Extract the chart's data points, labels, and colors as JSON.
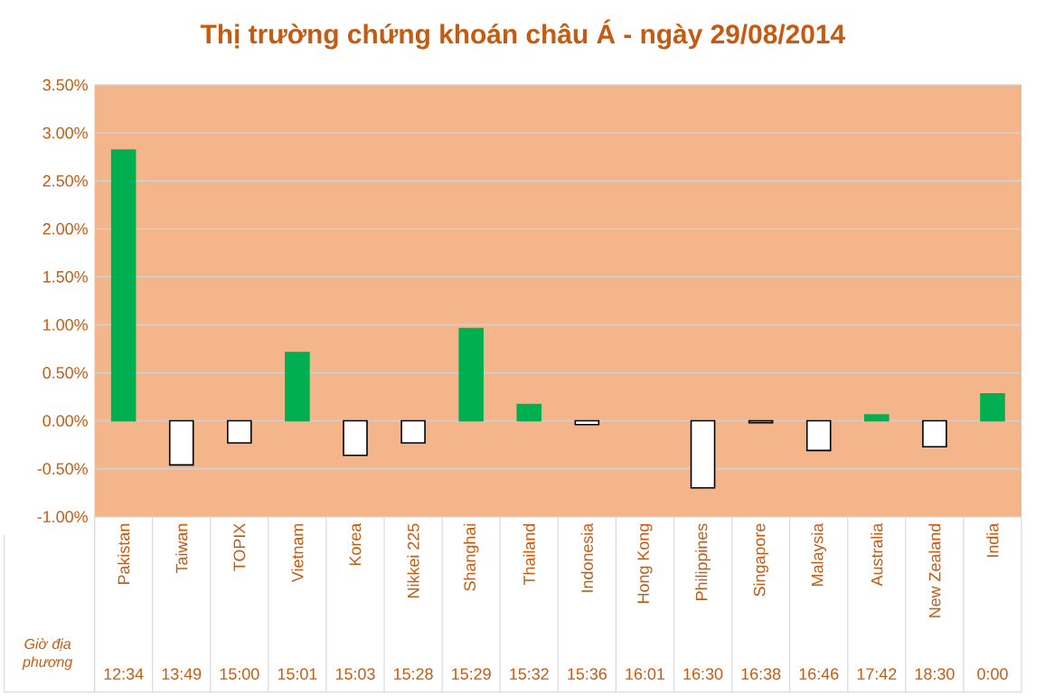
{
  "chart_data": {
    "type": "bar",
    "title": "Thị trường chứng khoán châu Á - ngày 29/08/2014",
    "categories": [
      "Pakistan",
      "Taiwan",
      "TOPIX",
      "Vietnam",
      "Korea",
      "Nikkei 225",
      "Shanghai",
      "Thailand",
      "Indonesia",
      "Hong Kong",
      "Philippines",
      "Singapore",
      "Malaysia",
      "Australia",
      "New Zealand",
      "India"
    ],
    "values": [
      2.82,
      -0.46,
      -0.23,
      0.71,
      -0.36,
      -0.23,
      0.96,
      0.17,
      -0.04,
      0,
      -0.7,
      -0.02,
      -0.31,
      0.06,
      -0.27,
      0.28
    ],
    "colors": [
      "#00b050",
      "#ffffff",
      "#ffffff",
      "#00b050",
      "#ffffff",
      "#ffffff",
      "#00b050",
      "#00b050",
      "#ffffff",
      "#ffffff",
      "#ffffff",
      "#ffffff",
      "#ffffff",
      "#00b050",
      "#ffffff",
      "#00b050"
    ],
    "ylim": [
      -1.0,
      3.5
    ],
    "yticks": [
      {
        "value": -1.0,
        "label": "-1.00%"
      },
      {
        "value": -0.5,
        "label": "-0.50%"
      },
      {
        "value": 0.0,
        "label": "0.00%"
      },
      {
        "value": 0.5,
        "label": "0.50%"
      },
      {
        "value": 1.0,
        "label": "1.00%"
      },
      {
        "value": 1.5,
        "label": "1.50%"
      },
      {
        "value": 2.0,
        "label": "2.00%"
      },
      {
        "value": 2.5,
        "label": "2.50%"
      },
      {
        "value": 3.0,
        "label": "3.00%"
      },
      {
        "value": 3.5,
        "label": "3.50%"
      }
    ],
    "grid": "y",
    "annotations": [
      "Giờ địa phương",
      "12:34",
      "13:49",
      "15:00",
      "15:01",
      "15:03",
      "15:28",
      "15:29",
      "15:32",
      "15:36",
      "16:01",
      "16:30",
      "16:38",
      "16:46",
      "17:42",
      "18:30",
      "0:00"
    ]
  }
}
